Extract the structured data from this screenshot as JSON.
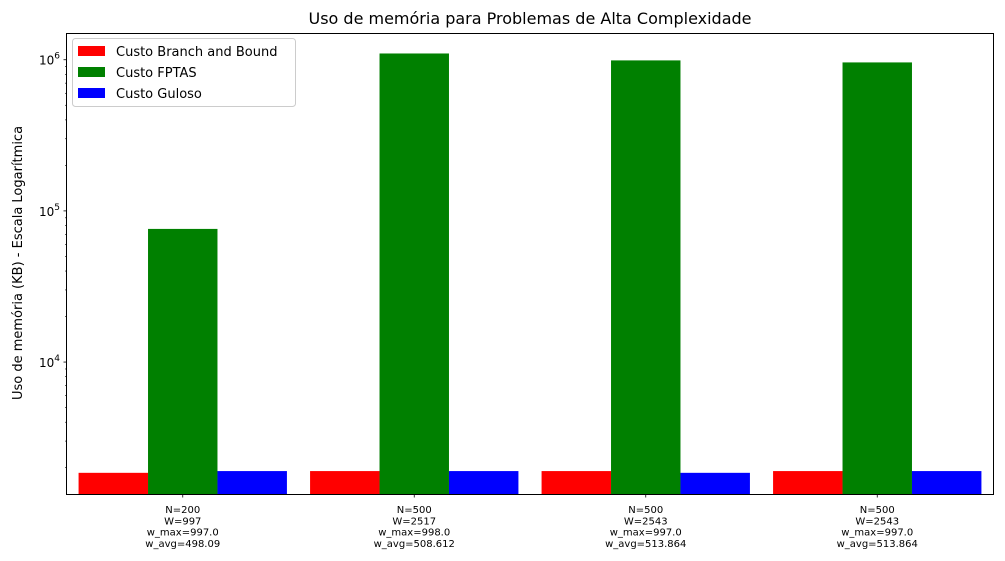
{
  "chart_data": {
    "type": "bar",
    "title": "Uso de memória para Problemas de Alta Complexidade",
    "xlabel": "",
    "ylabel": "Uso de memória (KB) - Escala Logarítmica",
    "yscale": "log",
    "ylim": [
      1340,
      1480000
    ],
    "yticks": [
      {
        "value": 10000,
        "base": "10",
        "exp": "4"
      },
      {
        "value": 100000,
        "base": "10",
        "exp": "5"
      },
      {
        "value": 1000000,
        "base": "10",
        "exp": "6"
      }
    ],
    "categories": [
      [
        "N=200",
        "W=997",
        "w_max=997.0",
        "w_avg=498.09"
      ],
      [
        "N=500",
        "W=2517",
        "w_max=998.0",
        "w_avg=508.612"
      ],
      [
        "N=500",
        "W=2543",
        "w_max=997.0",
        "w_avg=513.864"
      ],
      [
        "N=500",
        "W=2543",
        "w_max=997.0",
        "w_avg=513.864"
      ]
    ],
    "series": [
      {
        "name": "Custo Branch and Bound",
        "color": "#ff0000",
        "values": [
          1850,
          1900,
          1900,
          1900
        ]
      },
      {
        "name": "Custo FPTAS",
        "color": "#008000",
        "values": [
          76000,
          1100000,
          990000,
          960000
        ]
      },
      {
        "name": "Custo Guloso",
        "color": "#0000ff",
        "values": [
          1900,
          1900,
          1850,
          1900
        ]
      }
    ],
    "grid": false,
    "legend": "top-left"
  }
}
